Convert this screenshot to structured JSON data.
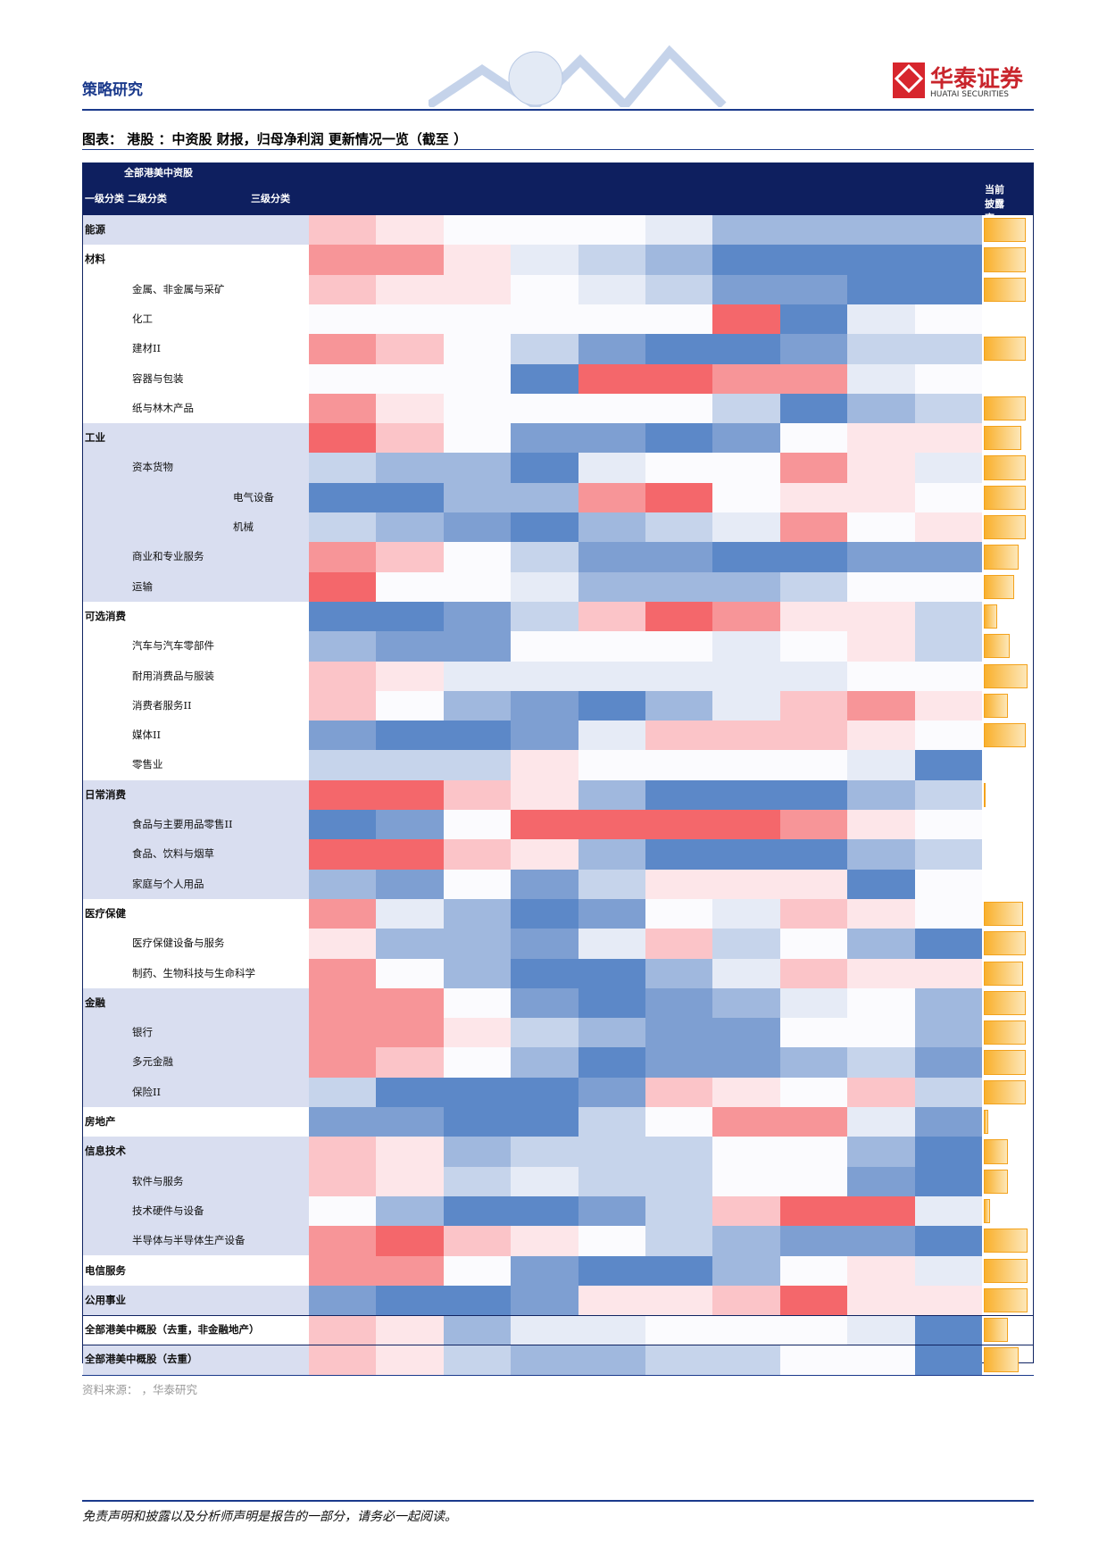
{
  "header": {
    "section": "策略研究",
    "brand": "华泰证券",
    "brand_en": "HUATAI SECURITIES"
  },
  "title": "图表： 港股    ：中资股        财报，归母净利润        更新情况一览（截至                ）",
  "table": {
    "group_header": "全部港美中资股",
    "level_headers": "一级分类 二级分类",
    "level3_header": "三级分类",
    "exposure_header": "当前披露率",
    "palette": {
      "R": "#f4676b",
      "r": "#f79598",
      "p": "#fbc4c8",
      "q": "#fde6e9",
      "w": "#fbfbfe",
      "a": "#e6ebf6",
      "b": "#c6d4eb",
      "c": "#a0b8de",
      "d": "#7e9fd2",
      "e": "#5c88c8"
    },
    "rows": [
      {
        "label": "能源",
        "level": 1,
        "band": 1,
        "cells": [
          "p",
          "q",
          "w",
          "w",
          "w",
          "a",
          "c",
          "c",
          "c",
          "c"
        ],
        "exposure": 95
      },
      {
        "label": "材料",
        "level": 1,
        "band": 0,
        "cells": [
          "r",
          "r",
          "q",
          "a",
          "b",
          "c",
          "e",
          "e",
          "e",
          "e"
        ],
        "exposure": 95
      },
      {
        "label": "金属、非金属与采矿",
        "level": 2,
        "band": 0,
        "cells": [
          "p",
          "q",
          "q",
          "w",
          "a",
          "b",
          "d",
          "d",
          "e",
          "e"
        ],
        "exposure": 95
      },
      {
        "label": "化工",
        "level": 2,
        "band": 0,
        "cells": [
          "w",
          "w",
          "w",
          "w",
          "w",
          "w",
          "R",
          "e",
          "a",
          "w"
        ],
        "exposure": 0
      },
      {
        "label": "建材II",
        "level": 2,
        "band": 0,
        "cells": [
          "r",
          "p",
          "w",
          "b",
          "d",
          "e",
          "e",
          "d",
          "b",
          "b"
        ],
        "exposure": 95
      },
      {
        "label": "容器与包装",
        "level": 2,
        "band": 0,
        "cells": [
          "w",
          "w",
          "w",
          "e",
          "R",
          "R",
          "r",
          "r",
          "a",
          "w"
        ],
        "exposure": 0
      },
      {
        "label": "纸与林木产品",
        "level": 2,
        "band": 0,
        "cells": [
          "r",
          "q",
          "w",
          "w",
          "w",
          "w",
          "b",
          "e",
          "c",
          "b"
        ],
        "exposure": 95
      },
      {
        "label": "工业",
        "level": 1,
        "band": 1,
        "cells": [
          "R",
          "p",
          "w",
          "d",
          "d",
          "e",
          "d",
          "w",
          "q",
          "q"
        ],
        "exposure": 85
      },
      {
        "label": "资本货物",
        "level": 2,
        "band": 1,
        "cells": [
          "b",
          "c",
          "c",
          "e",
          "a",
          "w",
          "w",
          "r",
          "q",
          "a"
        ],
        "exposure": 95
      },
      {
        "label": "电气设备",
        "level": 3,
        "band": 1,
        "cells": [
          "e",
          "e",
          "c",
          "c",
          "r",
          "R",
          "w",
          "q",
          "q",
          "w"
        ],
        "exposure": 95
      },
      {
        "label": "机械",
        "level": 3,
        "band": 1,
        "cells": [
          "b",
          "c",
          "d",
          "e",
          "c",
          "b",
          "a",
          "r",
          "w",
          "q"
        ],
        "exposure": 95
      },
      {
        "label": "商业和专业服务",
        "level": 2,
        "band": 1,
        "cells": [
          "r",
          "p",
          "w",
          "b",
          "d",
          "d",
          "e",
          "e",
          "d",
          "d"
        ],
        "exposure": 80
      },
      {
        "label": "运输",
        "level": 2,
        "band": 1,
        "cells": [
          "R",
          "w",
          "w",
          "a",
          "c",
          "c",
          "c",
          "b",
          "w",
          "w"
        ],
        "exposure": 70
      },
      {
        "label": "可选消费",
        "level": 1,
        "band": 0,
        "cells": [
          "e",
          "e",
          "d",
          "b",
          "p",
          "R",
          "r",
          "q",
          "q",
          "b"
        ],
        "exposure": 30
      },
      {
        "label": "汽车与汽车零部件",
        "level": 2,
        "band": 0,
        "cells": [
          "c",
          "d",
          "d",
          "w",
          "w",
          "w",
          "a",
          "w",
          "q",
          "b"
        ],
        "exposure": 60
      },
      {
        "label": "耐用消费品与服装",
        "level": 2,
        "band": 0,
        "cells": [
          "p",
          "q",
          "a",
          "a",
          "a",
          "a",
          "a",
          "a",
          "w",
          "w"
        ],
        "exposure": 100
      },
      {
        "label": "消费者服务II",
        "level": 2,
        "band": 0,
        "cells": [
          "p",
          "w",
          "c",
          "d",
          "e",
          "c",
          "a",
          "p",
          "r",
          "q"
        ],
        "exposure": 55
      },
      {
        "label": "媒体II",
        "level": 2,
        "band": 0,
        "cells": [
          "d",
          "e",
          "e",
          "d",
          "a",
          "p",
          "p",
          "p",
          "q",
          "w"
        ],
        "exposure": 95
      },
      {
        "label": "零售业",
        "level": 2,
        "band": 0,
        "cells": [
          "b",
          "b",
          "b",
          "q",
          "w",
          "w",
          "w",
          "w",
          "a",
          "e"
        ],
        "exposure": 0
      },
      {
        "label": "日常消费",
        "level": 1,
        "band": 1,
        "cells": [
          "R",
          "R",
          "p",
          "q",
          "c",
          "e",
          "e",
          "e",
          "c",
          "b"
        ],
        "exposure": 5
      },
      {
        "label": "食品与主要用品零售II",
        "level": 2,
        "band": 1,
        "cells": [
          "e",
          "d",
          "w",
          "R",
          "R",
          "R",
          "R",
          "r",
          "q",
          "w"
        ],
        "exposure": 0
      },
      {
        "label": "食品、饮料与烟草",
        "level": 2,
        "band": 1,
        "cells": [
          "R",
          "R",
          "p",
          "q",
          "c",
          "e",
          "e",
          "e",
          "c",
          "b"
        ],
        "exposure": 0
      },
      {
        "label": "家庭与个人用品",
        "level": 2,
        "band": 1,
        "cells": [
          "c",
          "d",
          "w",
          "d",
          "b",
          "q",
          "q",
          "q",
          "e",
          "w"
        ],
        "exposure": 0
      },
      {
        "label": "医疗保健",
        "level": 1,
        "band": 0,
        "cells": [
          "r",
          "a",
          "c",
          "e",
          "d",
          "w",
          "a",
          "p",
          "q",
          "w"
        ],
        "exposure": 90
      },
      {
        "label": "医疗保健设备与服务",
        "level": 2,
        "band": 0,
        "cells": [
          "q",
          "c",
          "c",
          "d",
          "a",
          "p",
          "b",
          "w",
          "c",
          "e"
        ],
        "exposure": 95
      },
      {
        "label": "制药、生物科技与生命科学",
        "level": 2,
        "band": 0,
        "cells": [
          "r",
          "w",
          "c",
          "e",
          "e",
          "c",
          "a",
          "p",
          "q",
          "q"
        ],
        "exposure": 90
      },
      {
        "label": "金融",
        "level": 1,
        "band": 1,
        "cells": [
          "r",
          "r",
          "w",
          "d",
          "e",
          "d",
          "c",
          "a",
          "w",
          "c"
        ],
        "exposure": 95
      },
      {
        "label": "银行",
        "level": 2,
        "band": 1,
        "cells": [
          "r",
          "r",
          "q",
          "b",
          "c",
          "d",
          "d",
          "w",
          "w",
          "c"
        ],
        "exposure": 95
      },
      {
        "label": "多元金融",
        "level": 2,
        "band": 1,
        "cells": [
          "r",
          "p",
          "w",
          "c",
          "e",
          "d",
          "d",
          "c",
          "b",
          "d"
        ],
        "exposure": 95
      },
      {
        "label": "保险II",
        "level": 2,
        "band": 1,
        "cells": [
          "b",
          "e",
          "e",
          "e",
          "d",
          "p",
          "q",
          "w",
          "p",
          "b"
        ],
        "exposure": 95
      },
      {
        "label": "房地产",
        "level": 1,
        "band": 0,
        "cells": [
          "d",
          "d",
          "e",
          "e",
          "b",
          "w",
          "r",
          "r",
          "a",
          "d"
        ],
        "exposure": 10
      },
      {
        "label": "信息技术",
        "level": 1,
        "band": 1,
        "cells": [
          "p",
          "q",
          "c",
          "b",
          "b",
          "b",
          "w",
          "w",
          "c",
          "e"
        ],
        "exposure": 55
      },
      {
        "label": "软件与服务",
        "level": 2,
        "band": 1,
        "cells": [
          "p",
          "q",
          "b",
          "a",
          "b",
          "b",
          "w",
          "w",
          "d",
          "e"
        ],
        "exposure": 55
      },
      {
        "label": "技术硬件与设备",
        "level": 2,
        "band": 1,
        "cells": [
          "w",
          "c",
          "e",
          "e",
          "d",
          "b",
          "p",
          "R",
          "R",
          "a"
        ],
        "exposure": 15
      },
      {
        "label": "半导体与半导体生产设备",
        "level": 2,
        "band": 1,
        "cells": [
          "r",
          "R",
          "p",
          "q",
          "w",
          "b",
          "c",
          "d",
          "d",
          "e"
        ],
        "exposure": 100
      },
      {
        "label": "电信服务",
        "level": 1,
        "band": 0,
        "cells": [
          "r",
          "r",
          "w",
          "d",
          "e",
          "e",
          "c",
          "w",
          "q",
          "a"
        ],
        "exposure": 100
      },
      {
        "label": "公用事业",
        "level": 1,
        "band": 1,
        "cells": [
          "d",
          "e",
          "e",
          "d",
          "q",
          "q",
          "p",
          "R",
          "q",
          "q"
        ],
        "exposure": 100
      },
      {
        "label": "全部港美中概股（去重，非金融地产）",
        "level": 1,
        "band": 0,
        "cells": [
          "p",
          "q",
          "c",
          "a",
          "a",
          "w",
          "w",
          "w",
          "a",
          "e"
        ],
        "exposure": 55
      },
      {
        "label": "全部港美中概股（去重）",
        "level": 1,
        "band": 1,
        "cells": [
          "p",
          "q",
          "b",
          "c",
          "c",
          "b",
          "b",
          "w",
          "w",
          "e"
        ],
        "exposure": 80
      }
    ]
  },
  "source": "资料来源：    ，华泰研究",
  "disclaimer": "免责声明和披露以及分析师声明是报告的一部分，请务必一起阅读。"
}
